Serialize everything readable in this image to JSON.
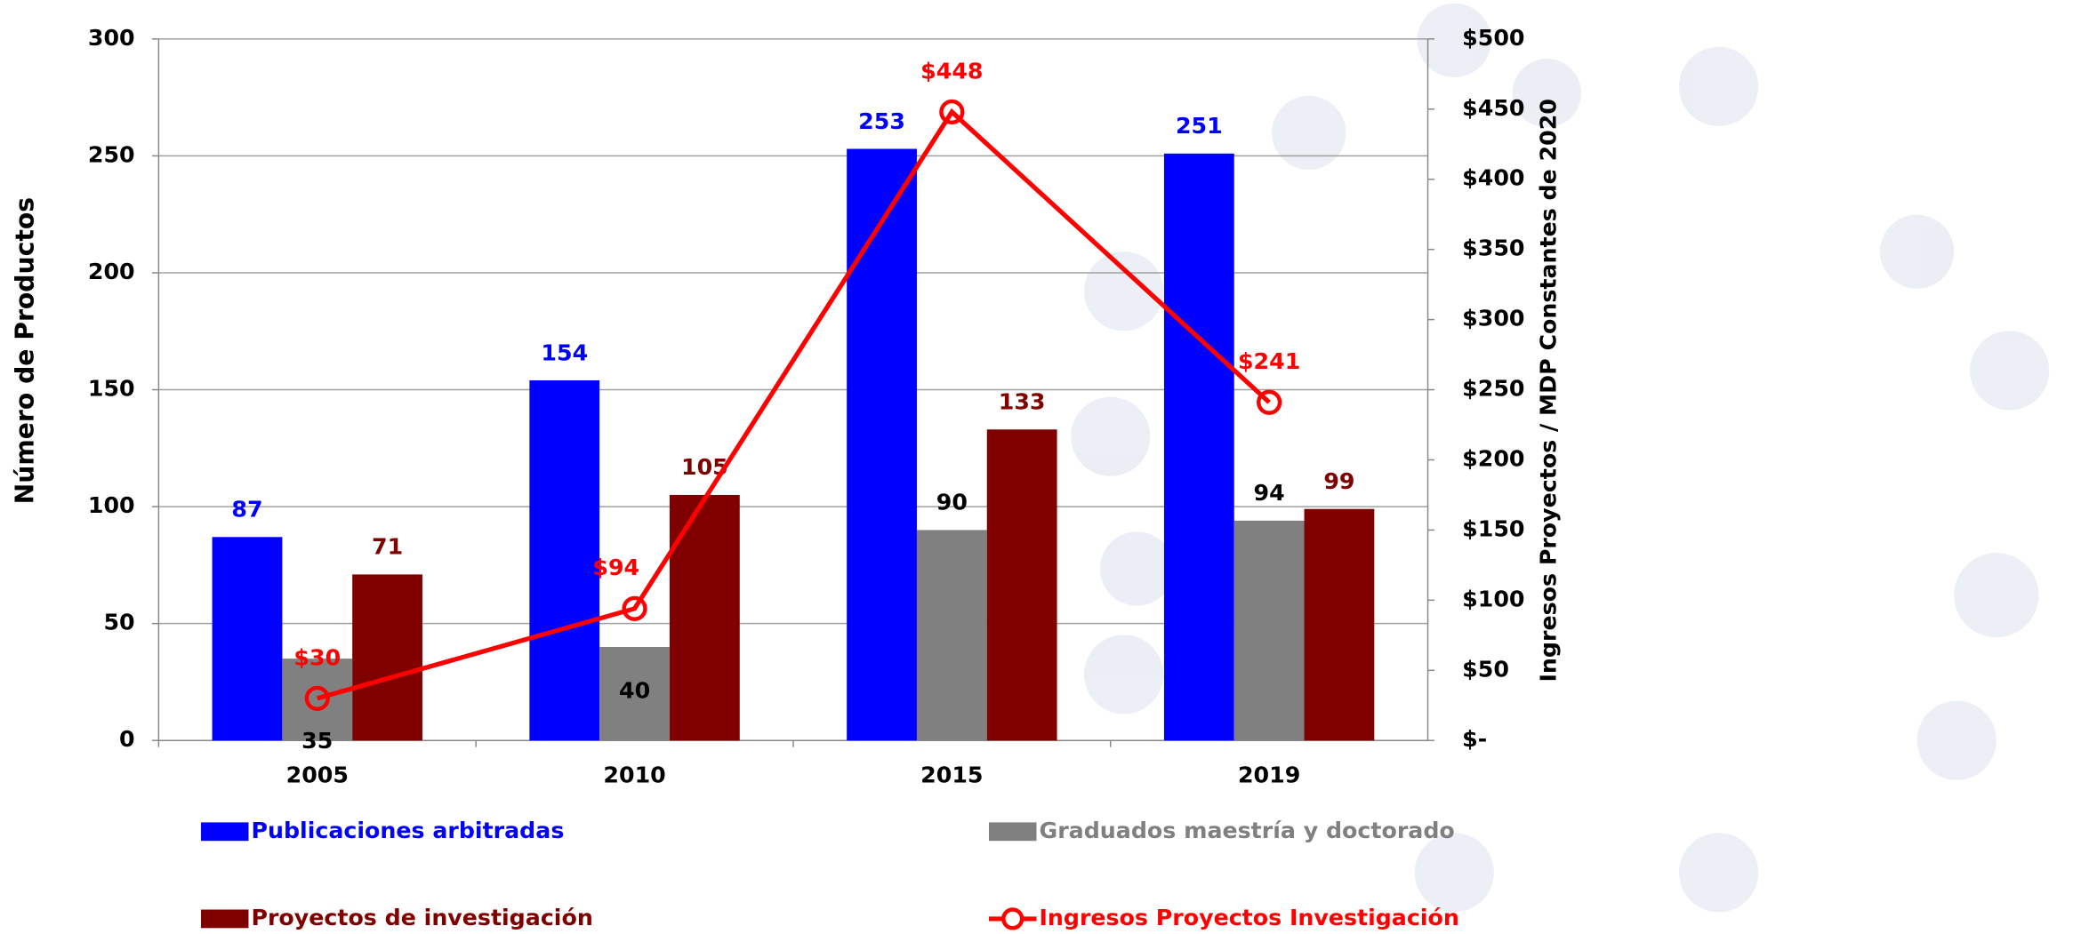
{
  "chart_data": {
    "type": "bar",
    "y_label": "Número de Productos",
    "y2_label": "Ingresos Proyectos / MDP Constantes de 2020",
    "categories": [
      "2005",
      "2010",
      "2015",
      "2019"
    ],
    "series": [
      {
        "name": "Publicaciones arbitradas",
        "color": "#0000ff",
        "values": [
          87,
          154,
          253,
          251
        ]
      },
      {
        "name": "Graduados maestría y doctorado",
        "color": "#808080",
        "values": [
          35,
          40,
          90,
          94
        ]
      },
      {
        "name": "Proyectos de investigación",
        "color": "#800000",
        "values": [
          71,
          105,
          133,
          99
        ]
      },
      {
        "name": "Ingresos Proyectos Investigación",
        "color": "#ff0000",
        "type": "line",
        "axis": "y2",
        "values": [
          30,
          94,
          448,
          241
        ],
        "value_labels": [
          "$30",
          "$94",
          "$448",
          "$241"
        ]
      }
    ],
    "ylim": [
      0,
      300
    ],
    "yticks": [
      0,
      50,
      100,
      150,
      200,
      250,
      300
    ],
    "y2lim": [
      0,
      500
    ],
    "y2ticks": [
      {
        "value": 0,
        "label": "$-"
      },
      {
        "value": 50,
        "label": "$50"
      },
      {
        "value": 100,
        "label": "$100"
      },
      {
        "value": 150,
        "label": "$150"
      },
      {
        "value": 200,
        "label": "$200"
      },
      {
        "value": 250,
        "label": "$250"
      },
      {
        "value": 300,
        "label": "$300"
      },
      {
        "value": 350,
        "label": "$350"
      },
      {
        "value": 400,
        "label": "$400"
      },
      {
        "value": 450,
        "label": "$450"
      },
      {
        "value": 500,
        "label": "$500"
      }
    ],
    "grid": true,
    "legend": "bottom"
  }
}
